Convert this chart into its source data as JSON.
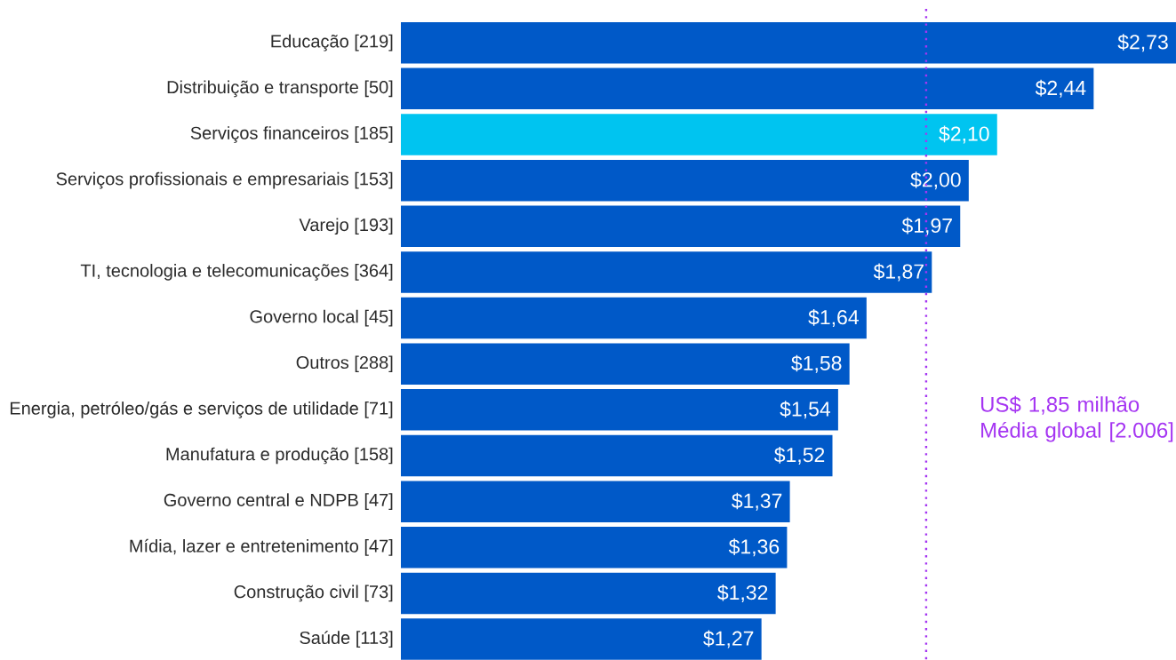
{
  "chart_data": {
    "type": "bar",
    "orientation": "horizontal",
    "categories": [
      "Educação [219]",
      "Distribuição e transporte [50]",
      "Serviços financeiros [185]",
      "Serviços profissionais e empresariais [153]",
      "Varejo [193]",
      "TI, tecnologia e telecomunicações [364]",
      "Governo local [45]",
      "Outros [288]",
      "Energia, petróleo/gás e serviços de utilidade [71]",
      "Manufatura e produção [158]",
      "Governo central e NDPB [47]",
      "Mídia, lazer e entretenimento [47]",
      "Construção civil [73]",
      "Saúde [113]"
    ],
    "values": [
      2.73,
      2.44,
      2.1,
      2.0,
      1.97,
      1.87,
      1.64,
      1.58,
      1.54,
      1.52,
      1.37,
      1.36,
      1.32,
      1.27
    ],
    "colors": [
      "#0059c8",
      "#0059c8",
      "#00c4f0",
      "#0059c8",
      "#0059c8",
      "#0059c8",
      "#0059c8",
      "#0059c8",
      "#0059c8",
      "#0059c8",
      "#0059c8",
      "#0059c8",
      "#0059c8",
      "#0059c8"
    ],
    "value_labels": [
      "$2,73",
      "$2,44",
      "$2,10",
      "$2,00",
      "$1,97",
      "$1,87",
      "$1,64",
      "$1,58",
      "$1,54",
      "$1,52",
      "$1,37",
      "$1,36",
      "$1,32",
      "$1,27"
    ],
    "xlim": [
      0,
      2.73
    ],
    "tick_labels": "y",
    "ref_lines": [
      {
        "axis": "x",
        "value": 1.85,
        "label": "US$ 1,85 milhão Média global [2.006]",
        "color": "#a535f2",
        "line_style": "dotted"
      }
    ]
  }
}
